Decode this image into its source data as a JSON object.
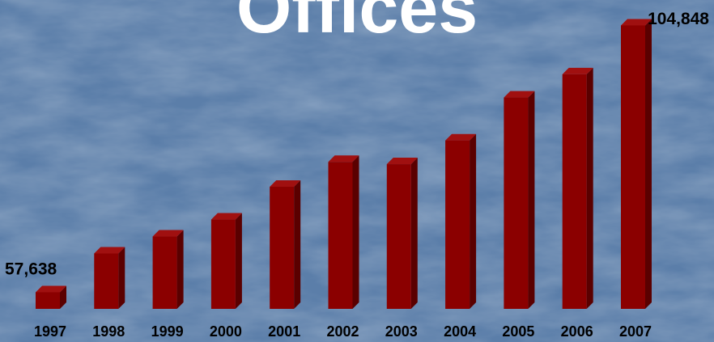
{
  "title_fragment": "Offices",
  "colors": {
    "background": "#5b7ea9",
    "bar_front": "#8b0000",
    "bar_side": "#5a0000",
    "bar_top": "#a01010",
    "label": "#000000",
    "title": "#ffffff"
  },
  "chart_data": {
    "type": "bar",
    "categories": [
      "1997",
      "1998",
      "1999",
      "2000",
      "2001",
      "2002",
      "2003",
      "2004",
      "2005",
      "2006",
      "2007"
    ],
    "series": [
      {
        "values": [
          57638,
          64500,
          67500,
          70500,
          76300,
          80700,
          80300,
          84500,
          92100,
          96200,
          104848
        ]
      }
    ],
    "data_labels": [
      {
        "category": "1997",
        "text": "57,638"
      },
      {
        "category": "2007",
        "text": "104,848"
      }
    ],
    "three_d": true,
    "grid": false,
    "legend": "none"
  }
}
